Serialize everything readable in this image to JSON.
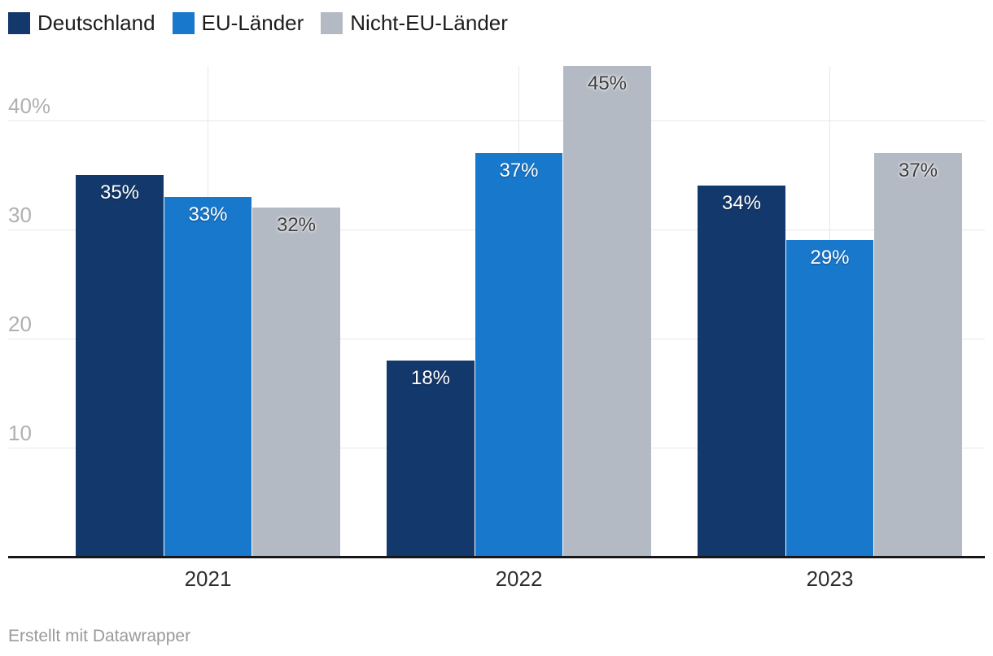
{
  "chart_data": {
    "type": "bar",
    "categories": [
      "2021",
      "2022",
      "2023"
    ],
    "series": [
      {
        "name": "Deutschland",
        "color": "#13386b",
        "label_style": "light",
        "values": [
          35,
          18,
          34
        ]
      },
      {
        "name": "EU-Länder",
        "color": "#1878cc",
        "label_style": "light",
        "values": [
          33,
          37,
          29
        ]
      },
      {
        "name": "Nicht-EU-Länder",
        "color": "#b4bac4",
        "label_style": "dark",
        "values": [
          32,
          45,
          37
        ]
      }
    ],
    "value_suffix": "%",
    "yticks": [
      {
        "value": 10,
        "label": "10"
      },
      {
        "value": 20,
        "label": "20"
      },
      {
        "value": 30,
        "label": "30"
      },
      {
        "value": 40,
        "label": "40%"
      }
    ],
    "ylim": [
      0,
      44.9
    ],
    "grid": true,
    "legend_position": "top-left",
    "title": "",
    "xlabel": "",
    "ylabel": ""
  },
  "colors": {
    "grid": "#e8e8e8",
    "axis_line": "#17171a",
    "ytick_text": "#b0b0b0",
    "xtick_text": "#2d2d2d",
    "legend_text": "#1c1c1c",
    "footer_text": "#9a9a9a"
  },
  "footer": {
    "credit": "Erstellt mit Datawrapper"
  }
}
